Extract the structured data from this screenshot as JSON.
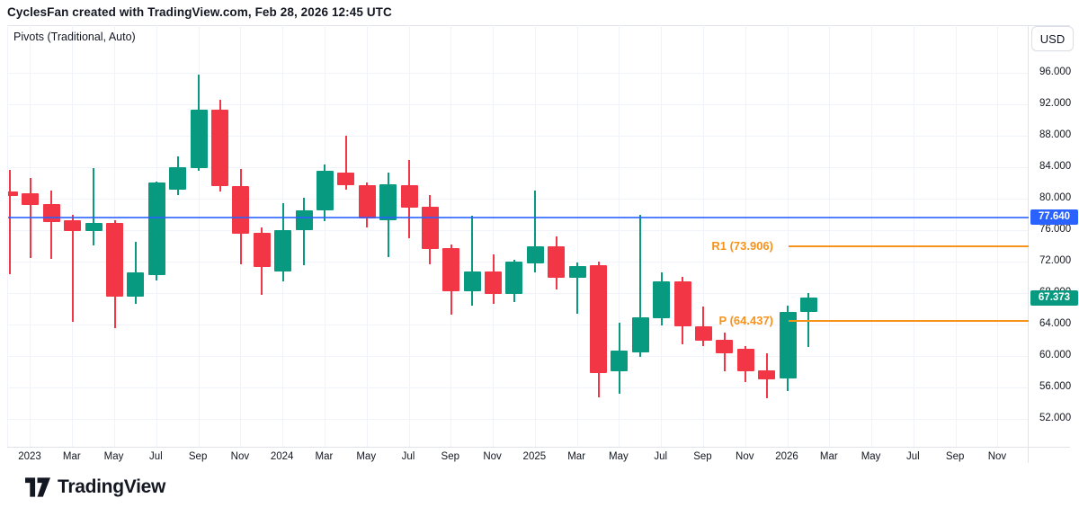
{
  "header": {
    "title": "CyclesFan created with TradingView.com, Feb 28, 2026 12:45 UTC"
  },
  "chart": {
    "legend": "Pivots (Traditional, Auto)",
    "currency_button": "USD",
    "price_line": {
      "value": 77.64,
      "label": "77.640",
      "color": "#2962ff"
    },
    "last_price": {
      "value": 67.373,
      "label": "67.373",
      "color": "#089981"
    },
    "pivot_levels": [
      {
        "name": "R1",
        "label": "R1 (73.906)",
        "value": 73.906
      },
      {
        "name": "P",
        "label": "P (64.437)",
        "value": 64.437
      }
    ]
  },
  "colors": {
    "up": "#089981",
    "down": "#f23645",
    "grid": "#f0f3fa",
    "axis_text": "#131722",
    "blue": "#2962ff",
    "orange": "#f7931a"
  },
  "chart_data": {
    "type": "candlestick",
    "timeframe": "1M",
    "ylabel": "USD",
    "ylim": [
      48.5,
      102
    ],
    "grid": true,
    "y_ticks": [
      96,
      92,
      88,
      84,
      80,
      76,
      72,
      68,
      64,
      60,
      56,
      52
    ],
    "x_labels": [
      "2023",
      "Mar",
      "May",
      "Jul",
      "Sep",
      "Nov",
      "2024",
      "Mar",
      "May",
      "Jul",
      "Sep",
      "Nov",
      "2025",
      "Mar",
      "May",
      "Jul",
      "Sep",
      "Nov",
      "2026",
      "Mar",
      "May",
      "Jul",
      "Sep",
      "Nov"
    ],
    "candles": [
      {
        "t": "Dec 2022",
        "o": 80.9,
        "h": 83.7,
        "l": 70.4,
        "c": 80.3
      },
      {
        "t": "Jan 2023",
        "o": 80.7,
        "h": 82.6,
        "l": 72.5,
        "c": 79.2
      },
      {
        "t": "Feb 2023",
        "o": 79.3,
        "h": 81.0,
        "l": 72.4,
        "c": 77.0
      },
      {
        "t": "Mar 2023",
        "o": 77.3,
        "h": 77.9,
        "l": 64.3,
        "c": 75.9
      },
      {
        "t": "Apr 2023",
        "o": 75.9,
        "h": 83.9,
        "l": 74.1,
        "c": 76.9
      },
      {
        "t": "May 2023",
        "o": 76.9,
        "h": 77.3,
        "l": 63.6,
        "c": 67.5
      },
      {
        "t": "Jun 2023",
        "o": 67.5,
        "h": 74.5,
        "l": 66.6,
        "c": 70.6
      },
      {
        "t": "Jul 2023",
        "o": 70.3,
        "h": 82.2,
        "l": 69.6,
        "c": 82.1
      },
      {
        "t": "Aug 2023",
        "o": 81.1,
        "h": 85.4,
        "l": 80.5,
        "c": 84.0
      },
      {
        "t": "Sep 2023",
        "o": 83.9,
        "h": 95.8,
        "l": 83.5,
        "c": 91.3
      },
      {
        "t": "Oct 2023",
        "o": 91.3,
        "h": 92.6,
        "l": 80.9,
        "c": 81.6
      },
      {
        "t": "Nov 2023",
        "o": 81.6,
        "h": 83.8,
        "l": 71.7,
        "c": 75.6
      },
      {
        "t": "Dec 2023",
        "o": 75.7,
        "h": 76.3,
        "l": 67.8,
        "c": 71.3
      },
      {
        "t": "Jan 2024",
        "o": 70.8,
        "h": 79.4,
        "l": 69.5,
        "c": 76.0
      },
      {
        "t": "Feb 2024",
        "o": 76.0,
        "h": 80.1,
        "l": 71.5,
        "c": 78.5
      },
      {
        "t": "Mar 2024",
        "o": 78.5,
        "h": 84.3,
        "l": 77.1,
        "c": 83.5
      },
      {
        "t": "Apr 2024",
        "o": 83.3,
        "h": 88.0,
        "l": 81.1,
        "c": 81.7
      },
      {
        "t": "May 2024",
        "o": 81.7,
        "h": 82.1,
        "l": 76.3,
        "c": 77.5
      },
      {
        "t": "Jun 2024",
        "o": 77.3,
        "h": 83.3,
        "l": 72.6,
        "c": 81.8
      },
      {
        "t": "Jul 2024",
        "o": 81.7,
        "h": 84.9,
        "l": 75.0,
        "c": 78.9
      },
      {
        "t": "Aug 2024",
        "o": 79.0,
        "h": 80.5,
        "l": 71.7,
        "c": 73.6
      },
      {
        "t": "Sep 2024",
        "o": 73.7,
        "h": 74.2,
        "l": 65.3,
        "c": 68.2
      },
      {
        "t": "Oct 2024",
        "o": 68.2,
        "h": 77.8,
        "l": 66.4,
        "c": 70.7
      },
      {
        "t": "Nov 2024",
        "o": 70.7,
        "h": 72.9,
        "l": 66.6,
        "c": 67.9
      },
      {
        "t": "Dec 2024",
        "o": 67.9,
        "h": 72.2,
        "l": 66.9,
        "c": 72.0
      },
      {
        "t": "Jan 2025",
        "o": 71.8,
        "h": 81.0,
        "l": 70.6,
        "c": 73.9
      },
      {
        "t": "Feb 2025",
        "o": 73.9,
        "h": 75.2,
        "l": 68.5,
        "c": 70.0
      },
      {
        "t": "Mar 2025",
        "o": 70.0,
        "h": 71.9,
        "l": 65.4,
        "c": 71.4
      },
      {
        "t": "Apr 2025",
        "o": 71.5,
        "h": 72.0,
        "l": 54.7,
        "c": 57.8
      },
      {
        "t": "May 2025",
        "o": 58.1,
        "h": 64.2,
        "l": 55.2,
        "c": 60.7
      },
      {
        "t": "Jun 2025",
        "o": 60.5,
        "h": 77.9,
        "l": 59.9,
        "c": 64.9
      },
      {
        "t": "Jul 2025",
        "o": 64.8,
        "h": 70.6,
        "l": 63.9,
        "c": 69.5
      },
      {
        "t": "Aug 2025",
        "o": 69.5,
        "h": 70.1,
        "l": 61.5,
        "c": 63.8
      },
      {
        "t": "Sep 2025",
        "o": 63.8,
        "h": 66.3,
        "l": 61.3,
        "c": 61.9
      },
      {
        "t": "Oct 2025",
        "o": 62.1,
        "h": 63.0,
        "l": 58.1,
        "c": 60.3
      },
      {
        "t": "Nov 2025",
        "o": 60.9,
        "h": 61.3,
        "l": 56.7,
        "c": 58.1
      },
      {
        "t": "Dec 2025",
        "o": 58.2,
        "h": 60.3,
        "l": 54.6,
        "c": 57.0
      },
      {
        "t": "Jan 2026",
        "o": 57.1,
        "h": 66.4,
        "l": 55.5,
        "c": 65.6
      },
      {
        "t": "Feb 2026",
        "o": 65.6,
        "h": 68.0,
        "l": 61.1,
        "c": 67.373
      }
    ],
    "overlays": {
      "horizontal_line": 77.64,
      "pivot_r1": 73.906,
      "pivot_p": 64.437
    }
  },
  "footer": {
    "logo_text": "TradingView"
  }
}
